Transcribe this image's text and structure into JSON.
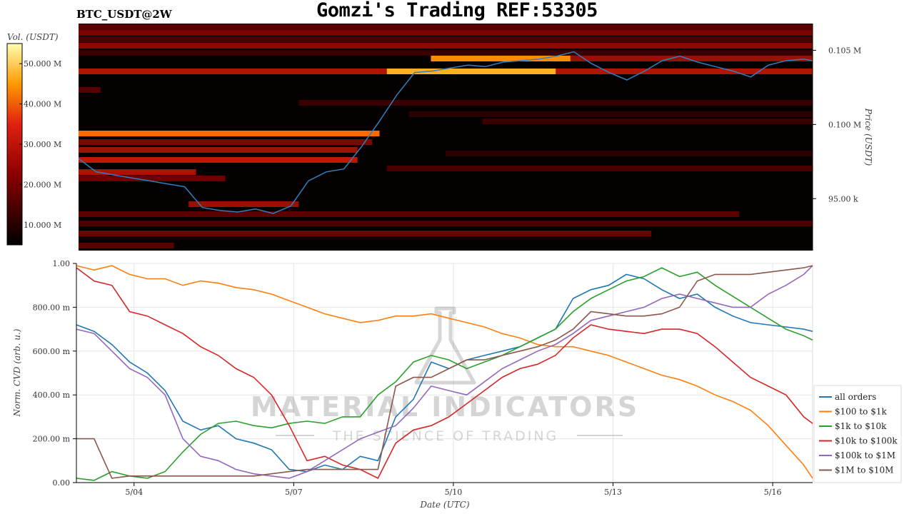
{
  "header": {
    "title": "Gomzi's Trading REF:53305",
    "pair": "BTC_USDT@2W"
  },
  "watermark": {
    "line1": "MATERIAL INDICATORS",
    "line2": "THE SCIENCE OF TRADING"
  },
  "chart_data": [
    {
      "type": "heatmap",
      "title": "",
      "colorbar_label": "Vol. (USDT)",
      "colorbar_ticks": [
        "10.000 M",
        "20.000 M",
        "30.000 M",
        "40.000 M",
        "50.000 M"
      ],
      "colorbar_values": [
        10000000,
        20000000,
        30000000,
        40000000,
        50000000
      ],
      "colorbar_range": [
        5000000,
        55000000
      ],
      "ylabel": "Price (USDT)",
      "y_ticks": [
        "95.00 k",
        "0.100 M",
        "0.105 M"
      ],
      "y_tick_values": [
        95000,
        100000,
        105000
      ],
      "ylim": [
        91500,
        106800
      ],
      "xlim": [
        "2025-05-02 22:00",
        "2025-05-16 18:00"
      ],
      "price_series": {
        "name": "",
        "x": [
          "2025-05-02 22:00",
          "2025-05-03 06:00",
          "2025-05-03 14:00",
          "2025-05-03 22:00",
          "2025-05-04 06:00",
          "2025-05-04 14:00",
          "2025-05-04 22:00",
          "2025-05-05 06:00",
          "2025-05-05 14:00",
          "2025-05-05 22:00",
          "2025-05-06 06:00",
          "2025-05-06 14:00",
          "2025-05-06 22:00",
          "2025-05-07 06:00",
          "2025-05-07 14:00",
          "2025-05-07 22:00",
          "2025-05-08 06:00",
          "2025-05-08 14:00",
          "2025-05-08 22:00",
          "2025-05-09 06:00",
          "2025-05-09 14:00",
          "2025-05-09 22:00",
          "2025-05-10 06:00",
          "2025-05-10 14:00",
          "2025-05-10 22:00",
          "2025-05-11 06:00",
          "2025-05-11 14:00",
          "2025-05-11 22:00",
          "2025-05-12 06:00",
          "2025-05-12 14:00",
          "2025-05-12 22:00",
          "2025-05-13 06:00",
          "2025-05-13 14:00",
          "2025-05-13 22:00",
          "2025-05-14 06:00",
          "2025-05-14 14:00",
          "2025-05-14 22:00",
          "2025-05-15 06:00",
          "2025-05-15 14:00",
          "2025-05-15 22:00",
          "2025-05-16 06:00",
          "2025-05-16 14:00",
          "2025-05-16 18:00"
        ],
        "y": [
          97700,
          96800,
          96600,
          96400,
          96200,
          96000,
          95800,
          94400,
          94200,
          94100,
          94300,
          94000,
          94500,
          96200,
          96800,
          97000,
          98500,
          100200,
          102000,
          103500,
          103600,
          103800,
          104000,
          103900,
          104200,
          104300,
          104400,
          104600,
          104900,
          104100,
          103500,
          103000,
          103600,
          104300,
          104600,
          104200,
          103900,
          103600,
          103200,
          104000,
          104300,
          104400,
          104300
        ]
      }
    },
    {
      "type": "line",
      "title": "",
      "xlabel": "Date (UTC)",
      "ylabel": "Norm. CVD (arb. u.)",
      "ylim": [
        0,
        1
      ],
      "xlim": [
        "2025-05-02 22:00",
        "2025-05-16 18:00"
      ],
      "x_ticks": [
        "5/04",
        "5/07",
        "5/10",
        "5/13",
        "5/16"
      ],
      "x_tick_values": [
        "2025-05-04",
        "2025-05-07",
        "2025-05-10",
        "2025-05-13",
        "2025-05-16"
      ],
      "y_ticks": [
        "0.00",
        "200.00 m",
        "400.00 m",
        "600.00 m",
        "800.00 m",
        "1.00"
      ],
      "y_tick_values": [
        0,
        0.2,
        0.4,
        0.6,
        0.8,
        1.0
      ],
      "grid": true,
      "legend_position": "right",
      "x": [
        "2025-05-02 22:00",
        "2025-05-03 06:00",
        "2025-05-03 14:00",
        "2025-05-03 22:00",
        "2025-05-04 06:00",
        "2025-05-04 14:00",
        "2025-05-04 22:00",
        "2025-05-05 06:00",
        "2025-05-05 14:00",
        "2025-05-05 22:00",
        "2025-05-06 06:00",
        "2025-05-06 14:00",
        "2025-05-06 22:00",
        "2025-05-07 06:00",
        "2025-05-07 14:00",
        "2025-05-07 22:00",
        "2025-05-08 06:00",
        "2025-05-08 14:00",
        "2025-05-08 22:00",
        "2025-05-09 06:00",
        "2025-05-09 14:00",
        "2025-05-09 22:00",
        "2025-05-10 06:00",
        "2025-05-10 14:00",
        "2025-05-10 22:00",
        "2025-05-11 06:00",
        "2025-05-11 14:00",
        "2025-05-11 22:00",
        "2025-05-12 06:00",
        "2025-05-12 14:00",
        "2025-05-12 22:00",
        "2025-05-13 06:00",
        "2025-05-13 14:00",
        "2025-05-13 22:00",
        "2025-05-14 06:00",
        "2025-05-14 14:00",
        "2025-05-14 22:00",
        "2025-05-15 06:00",
        "2025-05-15 14:00",
        "2025-05-15 22:00",
        "2025-05-16 06:00",
        "2025-05-16 14:00",
        "2025-05-16 18:00"
      ],
      "series": [
        {
          "name": "all orders",
          "color": "#1f77b4",
          "values": [
            0.72,
            0.69,
            0.63,
            0.55,
            0.5,
            0.42,
            0.28,
            0.24,
            0.26,
            0.2,
            0.18,
            0.15,
            0.06,
            0.05,
            0.08,
            0.06,
            0.12,
            0.1,
            0.3,
            0.38,
            0.55,
            0.52,
            0.56,
            0.58,
            0.6,
            0.62,
            0.66,
            0.7,
            0.84,
            0.88,
            0.9,
            0.95,
            0.93,
            0.88,
            0.84,
            0.86,
            0.8,
            0.76,
            0.73,
            0.72,
            0.71,
            0.7,
            0.69
          ]
        },
        {
          "name": "$100 to $1k",
          "color": "#ff7f0e",
          "values": [
            0.99,
            0.97,
            0.99,
            0.95,
            0.93,
            0.93,
            0.9,
            0.92,
            0.91,
            0.89,
            0.88,
            0.86,
            0.83,
            0.8,
            0.77,
            0.75,
            0.73,
            0.74,
            0.76,
            0.76,
            0.77,
            0.75,
            0.73,
            0.71,
            0.68,
            0.66,
            0.63,
            0.62,
            0.62,
            0.6,
            0.58,
            0.55,
            0.52,
            0.49,
            0.47,
            0.44,
            0.4,
            0.37,
            0.33,
            0.26,
            0.17,
            0.08,
            0.02
          ]
        },
        {
          "name": "$1k to $10k",
          "color": "#2ca02c",
          "values": [
            0.02,
            0.01,
            0.05,
            0.03,
            0.02,
            0.05,
            0.14,
            0.22,
            0.27,
            0.28,
            0.26,
            0.25,
            0.27,
            0.28,
            0.27,
            0.3,
            0.3,
            0.4,
            0.46,
            0.55,
            0.58,
            0.56,
            0.52,
            0.55,
            0.58,
            0.62,
            0.66,
            0.7,
            0.78,
            0.84,
            0.88,
            0.92,
            0.94,
            0.98,
            0.94,
            0.96,
            0.9,
            0.85,
            0.8,
            0.75,
            0.7,
            0.67,
            0.65
          ]
        },
        {
          "name": "$10k to $100k",
          "color": "#d62728",
          "values": [
            0.98,
            0.92,
            0.9,
            0.78,
            0.76,
            0.72,
            0.68,
            0.62,
            0.58,
            0.52,
            0.48,
            0.4,
            0.26,
            0.1,
            0.12,
            0.08,
            0.06,
            0.02,
            0.18,
            0.24,
            0.26,
            0.3,
            0.36,
            0.42,
            0.48,
            0.52,
            0.54,
            0.58,
            0.66,
            0.72,
            0.7,
            0.69,
            0.68,
            0.7,
            0.7,
            0.68,
            0.62,
            0.55,
            0.48,
            0.44,
            0.4,
            0.3,
            0.27
          ]
        },
        {
          "name": "$100k to $1M",
          "color": "#9467bd",
          "values": [
            0.7,
            0.68,
            0.6,
            0.52,
            0.48,
            0.4,
            0.2,
            0.12,
            0.1,
            0.06,
            0.04,
            0.03,
            0.02,
            0.05,
            0.1,
            0.15,
            0.2,
            0.23,
            0.26,
            0.34,
            0.44,
            0.42,
            0.4,
            0.46,
            0.52,
            0.56,
            0.6,
            0.63,
            0.68,
            0.74,
            0.76,
            0.78,
            0.8,
            0.84,
            0.86,
            0.84,
            0.82,
            0.8,
            0.8,
            0.86,
            0.9,
            0.95,
            0.99
          ]
        },
        {
          "name": "$1M to $10M",
          "color": "#8c564b",
          "values": [
            0.2,
            0.2,
            0.02,
            0.03,
            0.03,
            0.03,
            0.03,
            0.03,
            0.03,
            0.03,
            0.03,
            0.04,
            0.05,
            0.06,
            0.06,
            0.06,
            0.06,
            0.06,
            0.44,
            0.48,
            0.48,
            0.52,
            0.56,
            0.56,
            0.58,
            0.6,
            0.62,
            0.65,
            0.7,
            0.78,
            0.77,
            0.76,
            0.76,
            0.77,
            0.8,
            0.92,
            0.95,
            0.95,
            0.95,
            0.96,
            0.97,
            0.98,
            0.99
          ]
        }
      ]
    }
  ]
}
